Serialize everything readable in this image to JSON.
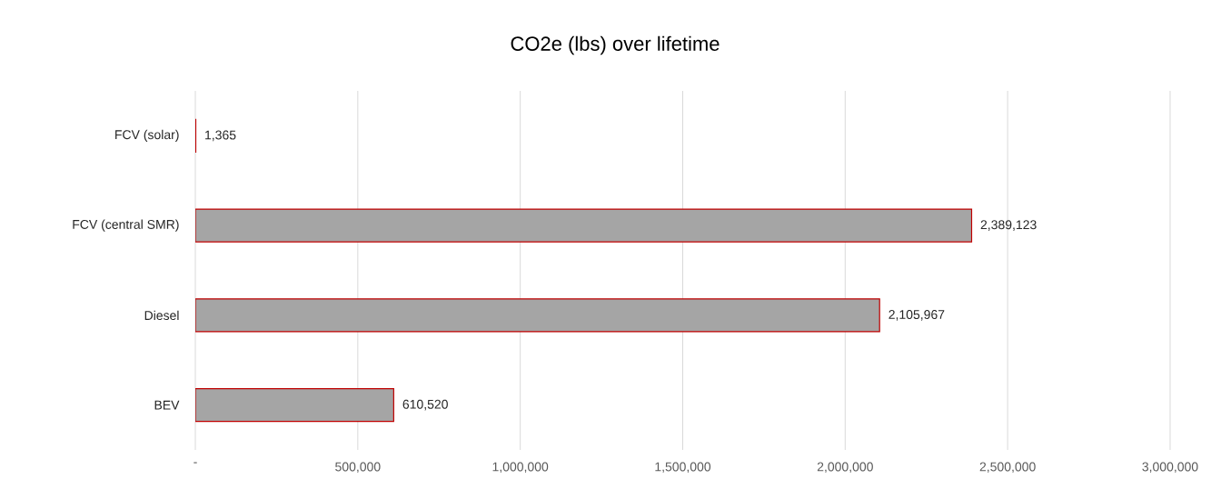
{
  "chart_data": {
    "type": "bar",
    "orientation": "horizontal",
    "title": "CO2e (lbs) over lifetime",
    "categories": [
      "FCV (solar)",
      "FCV (central SMR)",
      "Diesel",
      "BEV"
    ],
    "values": [
      1365,
      2389123,
      2105967,
      610520
    ],
    "value_labels": [
      "1,365",
      "2,389,123",
      "2,105,967",
      "610,520"
    ],
    "color": "#a5a5a5",
    "xlim": [
      0,
      3000000
    ],
    "xticks": [
      {
        "value": 0,
        "label": "-"
      },
      {
        "value": 500000,
        "label": "500,000"
      },
      {
        "value": 1000000,
        "label": "1,000,000"
      },
      {
        "value": 1500000,
        "label": "1,500,000"
      },
      {
        "value": 2000000,
        "label": "2,000,000"
      },
      {
        "value": 2500000,
        "label": "2,500,000"
      },
      {
        "value": 3000000,
        "label": "3,000,000"
      }
    ],
    "grid": "x"
  }
}
